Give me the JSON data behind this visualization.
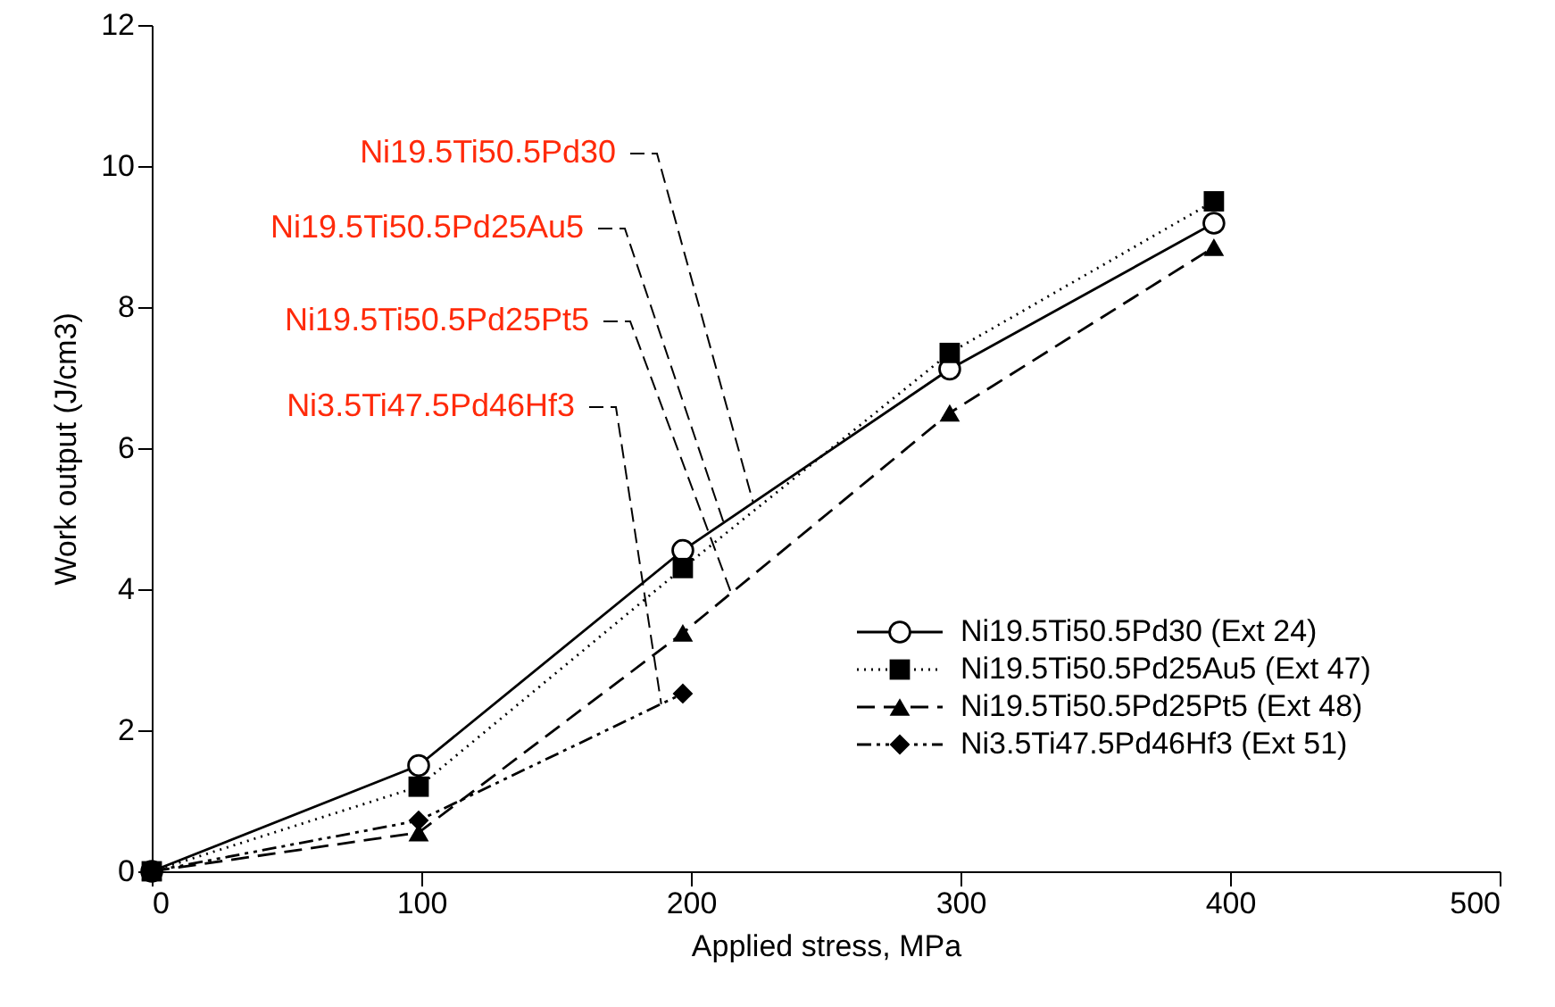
{
  "chart_data": {
    "type": "line",
    "xlabel": "Applied stress, MPa",
    "ylabel": "Work output (J/cm3)",
    "xlim": [
      0,
      500
    ],
    "xticks": [
      0,
      100,
      200,
      300,
      400,
      500
    ],
    "ylim": [
      0,
      12
    ],
    "yticks": [
      0,
      2,
      4,
      6,
      8,
      10,
      12
    ],
    "grid": false,
    "legend": "bottom right",
    "series": [
      {
        "name": "Ni19.5Ti50.5Pd30 (Ext 24)",
        "color": "#000000",
        "marker": "circle",
        "line_style": "solid",
        "x": [
          0,
          99,
          197,
          296,
          394
        ],
        "values": [
          0,
          1.5,
          4.55,
          7.12,
          9.19
        ]
      },
      {
        "name": "Ni19.5Ti50.5Pd25Au5 (Ext 47)",
        "color": "#000000",
        "marker": "square",
        "line_style": "dotted",
        "x": [
          0,
          99,
          197,
          296,
          394
        ],
        "values": [
          0,
          1.2,
          4.3,
          7.35,
          9.5
        ]
      },
      {
        "name": "Ni19.5Ti50.5Pd25Pt5 (Ext 48)",
        "color": "#000000",
        "marker": "triangle",
        "line_style": "dashed",
        "x": [
          0,
          99,
          197,
          296,
          394
        ],
        "values": [
          0,
          0.55,
          3.38,
          6.5,
          8.85
        ]
      },
      {
        "name": "Ni3.5Ti47.5Pd46Hf3 (Ext 51)",
        "color": "#000000",
        "marker": "diamond",
        "line_style": "dashdot",
        "x": [
          0,
          99,
          197
        ],
        "values": [
          0,
          0.72,
          2.52
        ]
      }
    ],
    "annotations": [
      {
        "text": "Ni19.5Ti50.5Pd30",
        "x": 223,
        "y": 5.24
      },
      {
        "text": "Ni19.5Ti50.5Pd25Au5",
        "x": 212,
        "y": 4.96
      },
      {
        "text": "Ni19.5Ti50.5Pd25Pt5",
        "x": 215,
        "y": 3.94
      },
      {
        "text": "Ni3.5Ti47.5Pd46Hf3",
        "x": 189,
        "y": 2.37
      }
    ]
  }
}
